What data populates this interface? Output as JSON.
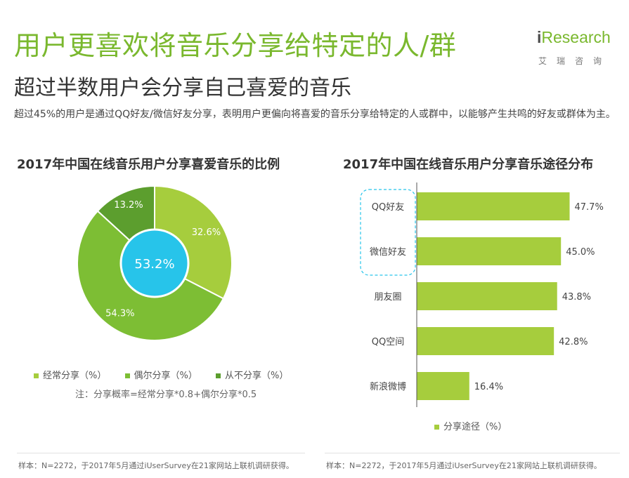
{
  "header": {
    "title": "用户更喜欢将音乐分享给特定的人/群",
    "subtitle": "超过半数用户会分享自己喜爱的音乐",
    "description": "超过45%的用户是通过QQ好友/微信好友分享，表明用户更偏向将喜爱的音乐分享给特定的人或群中，以能够产生共鸣的好友或群体为主。"
  },
  "logo": {
    "prefix": "i",
    "main": "Research",
    "sub": "艾瑞咨询"
  },
  "colors": {
    "accent": "#7ab82e",
    "often": "#a6cd3d",
    "sometimes": "#7dbe34",
    "never": "#5c9e2e",
    "center": "#27c4ea"
  },
  "chart_data": [
    {
      "type": "pie",
      "title": "2017年中国在线音乐用户分享喜爱音乐的比例",
      "center_label": "53.2%",
      "slices": [
        {
          "name": "经常分享（%）",
          "value": 32.6,
          "label": "32.6%",
          "color": "#a6cd3d"
        },
        {
          "name": "偶尔分享（%）",
          "value": 54.3,
          "label": "54.3%",
          "color": "#7dbe34"
        },
        {
          "name": "从不分享（%）",
          "value": 13.2,
          "label": "13.2%",
          "color": "#5c9e2e"
        }
      ],
      "legend_position": "bottom",
      "note": "注：分享概率=经常分享*0.8+偶尔分享*0.5",
      "footer": "样本：N=2272，于2017年5月通过iUserSurvey在21家网站上联机调研获得。"
    },
    {
      "type": "bar",
      "orientation": "horizontal",
      "title": "2017年中国在线音乐用户分享音乐途径分布",
      "categories": [
        "QQ好友",
        "微信好友",
        "朋友圈",
        "QQ空间",
        "新浪微博"
      ],
      "series": [
        {
          "name": "分享途径（%）",
          "values": [
            47.7,
            45.0,
            43.8,
            42.8,
            16.4
          ],
          "labels": [
            "47.7%",
            "45.0%",
            "43.8%",
            "42.8%",
            "16.4%"
          ],
          "color": "#a6cd3d"
        }
      ],
      "xlim": [
        0,
        50
      ],
      "highlighted_categories": [
        "QQ好友",
        "微信好友"
      ],
      "legend_position": "bottom",
      "footer": "样本：N=2272，于2017年5月通过iUserSurvey在21家网站上联机调研获得。"
    }
  ]
}
